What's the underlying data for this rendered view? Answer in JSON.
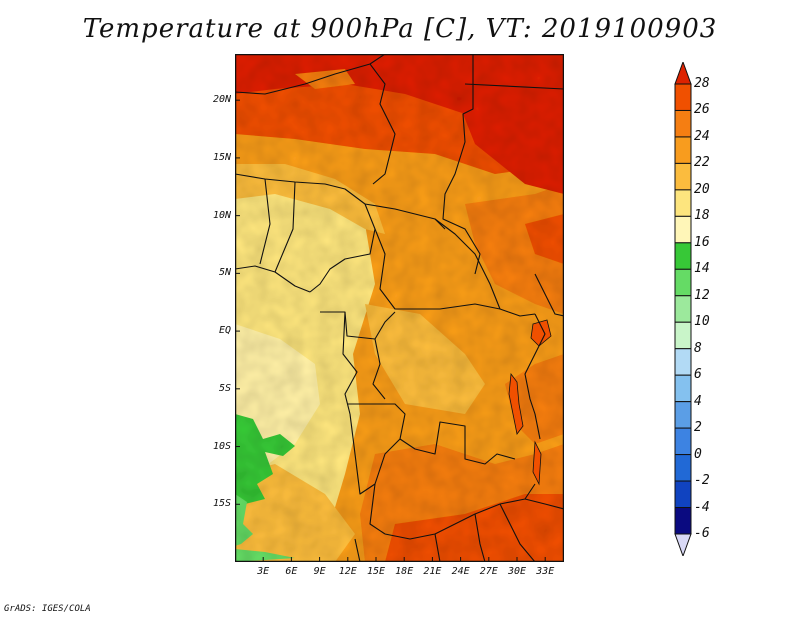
{
  "title": "Temperature at 900hPa [C], VT: 2019100903",
  "credit": "GrADS: IGES/COLA",
  "map": {
    "lat_range": [
      -20,
      24
    ],
    "lon_range": [
      0,
      35
    ],
    "lat_labels": [
      "20N",
      "15N",
      "10N",
      "5N",
      "EQ",
      "5S",
      "10S",
      "15S"
    ],
    "lat_values": [
      20,
      15,
      10,
      5,
      0,
      -5,
      -10,
      -15
    ],
    "lon_labels": [
      "3E",
      "6E",
      "9E",
      "12E",
      "15E",
      "18E",
      "21E",
      "24E",
      "27E",
      "30E",
      "33E"
    ],
    "lon_values": [
      3,
      6,
      9,
      12,
      15,
      18,
      21,
      24,
      27,
      30,
      33
    ]
  },
  "colorbar": {
    "labels": [
      "28",
      "26",
      "24",
      "22",
      "20",
      "18",
      "16",
      "14",
      "12",
      "10",
      "8",
      "6",
      "4",
      "2",
      "0",
      "-2",
      "-4",
      "-6"
    ],
    "colors": [
      "#dd2200",
      "#f05000",
      "#f57e12",
      "#f89c1e",
      "#fbbc3e",
      "#fde57e",
      "#fff6b8",
      "#37c837",
      "#65db65",
      "#9ce99c",
      "#c9f5c9",
      "#b2daf5",
      "#84c1ef",
      "#5b9ee6",
      "#3d83e2",
      "#2169d6",
      "#1043c0",
      "#0a0a80"
    ],
    "top_cap_color": "#dd2200",
    "bottom_cap_color": "#d9d9f6"
  }
}
